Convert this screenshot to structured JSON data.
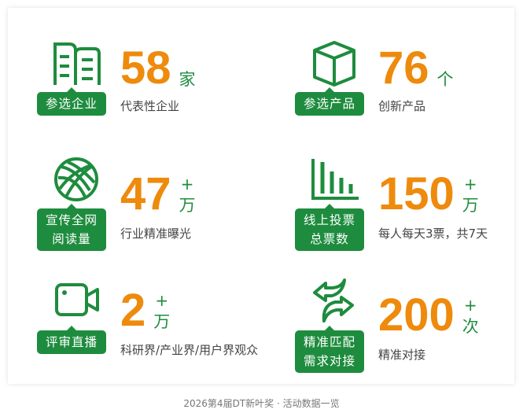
{
  "colors": {
    "accent_green": "#1e8c3e",
    "number_orange": "#ee8a0c"
  },
  "items": [
    {
      "icon": "book-icon",
      "badge": "参选企业",
      "number": "58",
      "plus": "",
      "unit": "家",
      "sub": "代表性企业"
    },
    {
      "icon": "box-icon",
      "badge": "参选产品",
      "number": "76",
      "plus": "",
      "unit": "个",
      "sub": "创新产品"
    },
    {
      "icon": "globe-icon",
      "badge": "宣传全网阅读量",
      "badge_lines": [
        "宣传全网",
        "阅读量"
      ],
      "number": "47",
      "plus": "+",
      "unit": "万",
      "sub": "行业精准曝光"
    },
    {
      "icon": "bar-chart-icon",
      "badge": "线上投票总票数",
      "badge_lines": [
        "线上投票",
        "总票数"
      ],
      "number": "150",
      "plus": "+",
      "unit": "万",
      "sub": "每人每天3票，共7天"
    },
    {
      "icon": "video-camera-icon",
      "badge": "评审直播",
      "number": "2",
      "plus": "+",
      "unit": "万",
      "sub": "科研界/产业界/用户界观众"
    },
    {
      "icon": "exchange-arrows-icon",
      "badge": "精准匹配需求对接",
      "badge_lines": [
        "精准匹配",
        "需求对接"
      ],
      "number": "200",
      "plus": "+",
      "unit": "次",
      "sub": "精准对接"
    }
  ],
  "caption": "2026第4届DT新叶奖 · 活动数据一览"
}
